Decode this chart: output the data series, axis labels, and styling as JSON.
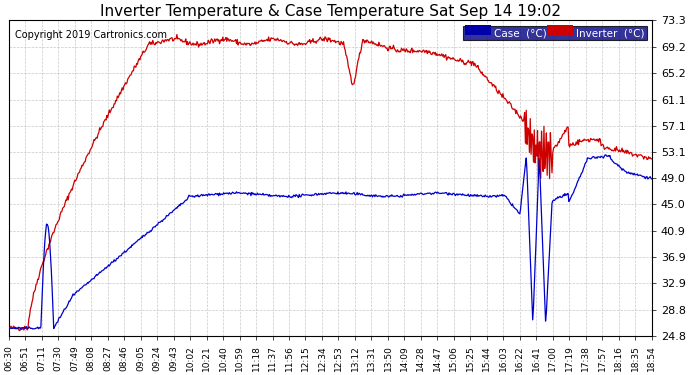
{
  "title": "Inverter Temperature & Case Temperature Sat Sep 14 19:02",
  "copyright": "Copyright 2019 Cartronics.com",
  "ylim": [
    24.8,
    73.3
  ],
  "yticks": [
    24.8,
    28.8,
    32.9,
    36.9,
    40.9,
    45.0,
    49.0,
    53.1,
    57.1,
    61.1,
    65.2,
    69.2,
    73.3
  ],
  "bg_color": "#ffffff",
  "plot_bg_color": "#ffffff",
  "grid_color": "#bbbbbb",
  "case_color": "#0000cc",
  "inverter_color": "#cc0000",
  "legend_case_bg": "#0000aa",
  "legend_inv_bg": "#cc0000",
  "legend_text_color": "#ffffff",
  "title_fontsize": 11,
  "copyright_fontsize": 7,
  "tick_fontsize": 8,
  "x_tick_labels": [
    "06:30",
    "06:51",
    "07:11",
    "07:30",
    "07:49",
    "08:08",
    "08:27",
    "08:46",
    "09:05",
    "09:24",
    "09:43",
    "10:02",
    "10:21",
    "10:40",
    "10:59",
    "11:18",
    "11:37",
    "11:56",
    "12:15",
    "12:34",
    "12:53",
    "13:12",
    "13:31",
    "13:50",
    "14:09",
    "14:28",
    "14:47",
    "15:06",
    "15:25",
    "15:44",
    "16:03",
    "16:22",
    "16:41",
    "17:00",
    "17:19",
    "17:38",
    "17:57",
    "18:16",
    "18:35",
    "18:54"
  ],
  "figwidth": 6.9,
  "figheight": 3.75,
  "dpi": 100
}
